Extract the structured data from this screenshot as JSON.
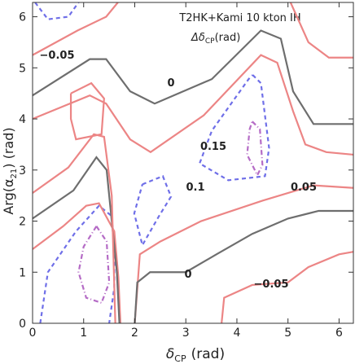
{
  "chart_data": {
    "type": "contour",
    "title": "T2HK+Kami 10 kton IH",
    "subtitle": {
      "symbol": "Δδ",
      "sub": "CP",
      "unit": "(rad)"
    },
    "xlabel": {
      "symbol": "δ",
      "sub": "CP",
      "unit": "(rad)"
    },
    "ylabel": {
      "text": "Arg(α",
      "sub": "21",
      "unit": ")  (rad)"
    },
    "xlim": [
      0,
      6.28
    ],
    "ylim": [
      0,
      6.28
    ],
    "xticks": [
      0,
      1,
      2,
      3,
      4,
      5,
      6
    ],
    "yticks": [
      0,
      1,
      2,
      3,
      4,
      5,
      6
    ],
    "contour_labels": [
      "−0.05",
      "0",
      "0.15",
      "0.1",
      "0.05",
      "0",
      "−0.05"
    ],
    "contours": [
      {
        "level": -0.05,
        "color": "#ec8585",
        "dash": "none",
        "x": [
          0,
          0.88,
          1.44,
          1.67
        ],
        "y": [
          5.25,
          5.73,
          6.0,
          6.28
        ]
      },
      {
        "level": 0,
        "color": "#6e6e6e",
        "dash": "none",
        "x": [
          0,
          1.12,
          1.44,
          1.91,
          2.39,
          3.51,
          4.47,
          4.86,
          5.1,
          5.5,
          6.28
        ],
        "y": [
          4.46,
          5.17,
          5.17,
          4.54,
          4.3,
          4.78,
          5.73,
          5.57,
          4.54,
          3.9,
          3.9
        ]
      },
      {
        "level": 0.05,
        "color": "#ec8585",
        "dash": "none",
        "x": [
          0,
          1.12,
          1.44,
          1.91,
          2.31,
          3.35,
          4.47,
          4.79,
          5.1,
          5.34,
          5.75,
          6.28
        ],
        "y": [
          4.0,
          4.46,
          4.3,
          3.6,
          3.35,
          4.07,
          5.25,
          5.1,
          4.15,
          3.5,
          3.35,
          3.3
        ]
      },
      {
        "level": -0.05,
        "color": "#ec8585",
        "dash": "none",
        "x": [
          5.05,
          5.4,
          5.8,
          6.28
        ],
        "y": [
          6.28,
          5.5,
          5.2,
          5.2
        ]
      },
      {
        "level": 0.05,
        "color": "#ec8585",
        "dash": "none",
        "x": [
          0.75,
          1.15,
          1.4,
          1.35,
          0.85,
          0.75,
          0.75
        ],
        "y": [
          4.5,
          4.7,
          4.4,
          3.7,
          3.6,
          4.0,
          4.5
        ]
      },
      {
        "level": 0.1,
        "color": "#6f6fe8",
        "dash": "5,4",
        "x": [
          0.05,
          0.3,
          0.7,
          0.9
        ],
        "y": [
          6.28,
          5.95,
          6.0,
          6.28
        ]
      },
      {
        "level": 0.1,
        "color": "#6f6fe8",
        "dash": "5,4",
        "x": [
          4.31,
          4.47,
          4.63,
          4.55,
          3.83,
          3.27,
          3.51,
          4.23,
          4.31
        ],
        "y": [
          4.86,
          4.7,
          3.43,
          2.88,
          2.8,
          3.13,
          3.77,
          4.78,
          4.86
        ]
      },
      {
        "level": 0.15,
        "color": "#b56cc6",
        "dash": "6,3,1,3",
        "x": [
          4.3,
          4.45,
          4.5,
          4.4,
          4.2,
          4.25,
          4.3
        ],
        "y": [
          3.95,
          3.8,
          3.1,
          2.9,
          3.3,
          3.8,
          3.95
        ]
      },
      {
        "level": 0.1,
        "color": "#6f6fe8",
        "dash": "5,4",
        "x": [
          2.15,
          2.55,
          2.71,
          2.47,
          2.15,
          1.99,
          2.15
        ],
        "y": [
          2.72,
          2.88,
          2.48,
          2.09,
          1.53,
          2.15,
          2.72
        ]
      },
      {
        "level": 0.1,
        "color": "#6f6fe8",
        "dash": "5,4",
        "x": [
          0.15,
          0.3,
          0.85,
          1.3,
          1.55,
          1.6,
          1.6,
          1.5
        ],
        "y": [
          0,
          1.0,
          1.8,
          2.3,
          2.1,
          1.5,
          0.7,
          0
        ]
      },
      {
        "level": 0.15,
        "color": "#b56cc6",
        "dash": "6,3,1,3",
        "x": [
          1.25,
          1.45,
          1.5,
          1.35,
          1.05,
          0.9,
          1.0,
          1.25
        ],
        "y": [
          1.9,
          1.6,
          0.8,
          0.4,
          0.5,
          1.0,
          1.5,
          1.9
        ]
      },
      {
        "level": 0.05,
        "color": "#ec8585",
        "dash": "none",
        "x": [
          0,
          0.6,
          1.05,
          1.3,
          1.6,
          1.68,
          1.72
        ],
        "y": [
          1.45,
          1.9,
          2.3,
          2.35,
          1.8,
          0.9,
          0
        ]
      },
      {
        "level": 0,
        "color": "#6e6e6e",
        "dash": "none",
        "x": [
          0,
          0.8,
          1.25,
          1.45,
          1.55,
          1.65,
          1.7
        ],
        "y": [
          2.05,
          2.6,
          3.25,
          3.0,
          2.0,
          1.0,
          0
        ]
      },
      {
        "level": -0.05,
        "color": "#ec8585",
        "dash": "none",
        "x": [
          0,
          0.7,
          1.2,
          1.4,
          1.55,
          1.62
        ],
        "y": [
          2.55,
          3.05,
          3.7,
          3.65,
          2.5,
          0
        ]
      },
      {
        "level": 0.05,
        "color": "#ec8585",
        "dash": "none",
        "x": [
          2.0,
          2.1,
          2.5,
          3.3,
          4.5,
          5.5,
          6.28
        ],
        "y": [
          0,
          1.35,
          1.6,
          2.0,
          2.4,
          2.7,
          2.65
        ]
      },
      {
        "level": 0,
        "color": "#6e6e6e",
        "dash": "none",
        "x": [
          2.0,
          2.05,
          2.3,
          3.0,
          3.6,
          4.3,
          5.0,
          5.6,
          6.28
        ],
        "y": [
          0,
          0.8,
          1.0,
          1.0,
          1.35,
          1.75,
          2.05,
          2.2,
          2.2
        ]
      },
      {
        "level": -0.05,
        "color": "#ec8585",
        "dash": "none",
        "x": [
          3.7,
          3.75,
          4.3,
          5.0,
          5.4,
          6.0,
          6.28
        ],
        "y": [
          0,
          0.5,
          0.75,
          0.8,
          1.1,
          1.35,
          1.4
        ]
      }
    ]
  }
}
